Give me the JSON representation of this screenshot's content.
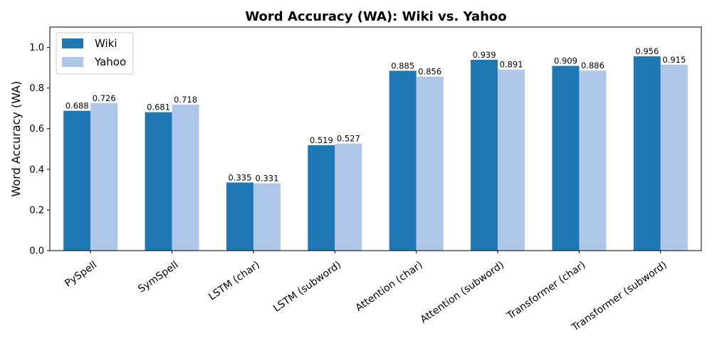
{
  "chart_data": {
    "type": "bar",
    "title": "Word Accuracy (WA): Wiki vs. Yahoo",
    "xlabel": "",
    "ylabel": "Word Accuracy (WA)",
    "ylim": [
      0,
      1.1
    ],
    "yticks": [
      0.0,
      0.2,
      0.4,
      0.6,
      0.8,
      1.0
    ],
    "ytick_labels": [
      "0.0",
      "0.2",
      "0.4",
      "0.6",
      "0.8",
      "1.0"
    ],
    "categories": [
      "PySpell",
      "SymSpell",
      "LSTM (char)",
      "LSTM (subword)",
      "Attention (char)",
      "Attention (subword)",
      "Transformer (char)",
      "Transformer (subword)"
    ],
    "series": [
      {
        "name": "Wiki",
        "color": "#1f77b4",
        "values": [
          0.688,
          0.681,
          0.335,
          0.519,
          0.885,
          0.939,
          0.909,
          0.956
        ],
        "labels": [
          "0.688",
          "0.681",
          "0.335",
          "0.519",
          "0.885",
          "0.939",
          "0.909",
          "0.956"
        ]
      },
      {
        "name": "Yahoo",
        "color": "#aec7e8",
        "values": [
          0.726,
          0.718,
          0.331,
          0.527,
          0.856,
          0.891,
          0.886,
          0.915
        ],
        "labels": [
          "0.726",
          "0.718",
          "0.331",
          "0.527",
          "0.856",
          "0.891",
          "0.886",
          "0.915"
        ]
      }
    ],
    "legend_position": "top-left",
    "grid": false
  }
}
